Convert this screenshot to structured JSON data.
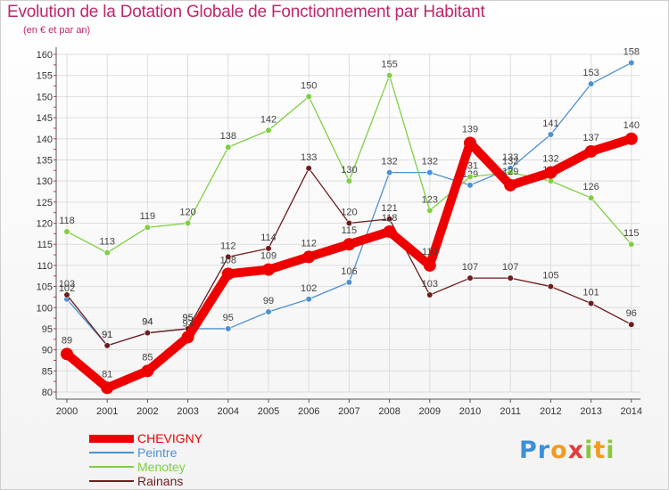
{
  "header": {
    "title": "Evolution de la Dotation Globale de Fonctionnement par Habitant",
    "subtitle": "(en € et par an)"
  },
  "logo": {
    "text": "Proxiti"
  },
  "colors": {
    "title": "#c0266b",
    "chevigny": "#ee0000",
    "peintre": "#4e90d0",
    "menotey": "#7fcf42",
    "rainans": "#6e1c1c",
    "grid": "#dddddd",
    "axis": "#555555"
  },
  "chart_data": {
    "type": "line",
    "title": "Evolution de la Dotation Globale de Fonctionnement par Habitant",
    "subtitle": "(en € et par an)",
    "x": [
      "2000",
      "2001",
      "2002",
      "2003",
      "2004",
      "2005",
      "2006",
      "2007",
      "2008",
      "2009",
      "2010",
      "2011",
      "2012",
      "2013",
      "2014"
    ],
    "ylim": [
      80,
      160
    ],
    "yticks": [
      80,
      85,
      90,
      95,
      100,
      105,
      110,
      115,
      120,
      125,
      130,
      135,
      140,
      145,
      150,
      155,
      160
    ],
    "grid": true,
    "legend_position": "bottom-left",
    "series": [
      {
        "name": "CHEVIGNY",
        "color": "#ee0000",
        "width": 10,
        "values": [
          89,
          81,
          85,
          93,
          108,
          109,
          112,
          115,
          118,
          110,
          139,
          129,
          132,
          137,
          140
        ]
      },
      {
        "name": "Peintre",
        "color": "#4e90d0",
        "width": 1.3,
        "values": [
          102,
          91,
          94,
          95,
          95,
          99,
          102,
          106,
          132,
          132,
          129,
          133,
          141,
          153,
          158
        ]
      },
      {
        "name": "Menotey",
        "color": "#7fcf42",
        "width": 1.3,
        "values": [
          118,
          113,
          119,
          120,
          138,
          142,
          150,
          130,
          155,
          123,
          131,
          132,
          130,
          126,
          115
        ]
      },
      {
        "name": "Rainans",
        "color": "#6e1c1c",
        "width": 1.3,
        "values": [
          103,
          91,
          94,
          95,
          112,
          114,
          133,
          120,
          121,
          103,
          107,
          107,
          105,
          101,
          96
        ]
      }
    ]
  }
}
